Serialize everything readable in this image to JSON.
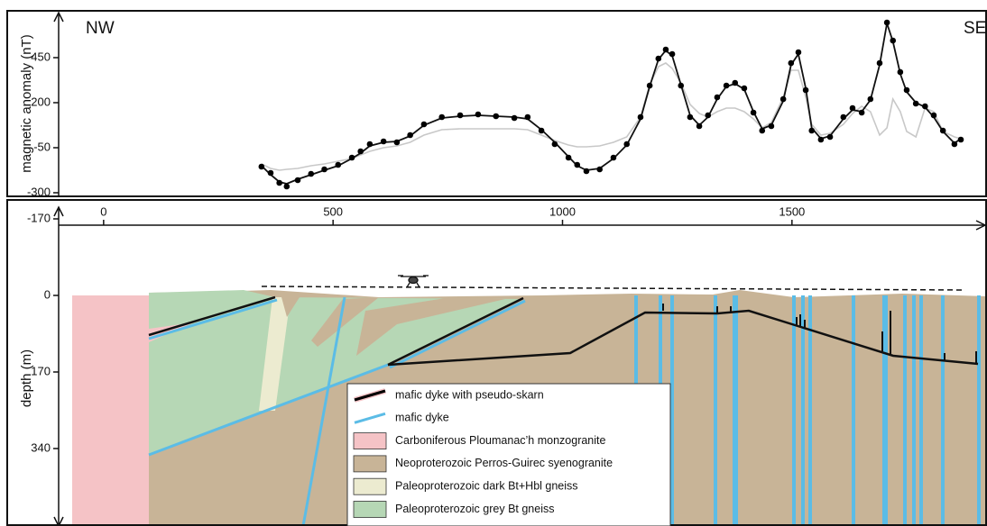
{
  "chart_data": [
    {
      "type": "line",
      "ylabel": "magnetic anomaly (nT)",
      "annotations": [
        "NW",
        "SE"
      ],
      "xlim": [
        -98,
        1925
      ],
      "ylim": [
        -320,
        700
      ],
      "yticks": [
        -300,
        -50,
        200,
        450
      ],
      "x": [
        344,
        364,
        383,
        399,
        423,
        452,
        481,
        511,
        541,
        560,
        580,
        610,
        639,
        668,
        698,
        737,
        777,
        816,
        855,
        895,
        924,
        954,
        983,
        1013,
        1032,
        1052,
        1081,
        1111,
        1140,
        1170,
        1190,
        1209,
        1225,
        1239,
        1258,
        1278,
        1298,
        1317,
        1337,
        1357,
        1376,
        1396,
        1416,
        1435,
        1455,
        1481,
        1498,
        1514,
        1530,
        1543,
        1563,
        1583,
        1612,
        1632,
        1652,
        1671,
        1691,
        1707,
        1720,
        1736,
        1750,
        1770,
        1790,
        1809,
        1829,
        1854,
        1868
      ],
      "series": [
        {
          "color": "#c8c8c8",
          "style": "line",
          "values": [
            -140,
            -165,
            -175,
            -170,
            -165,
            -150,
            -140,
            -125,
            -110,
            -90,
            -70,
            -50,
            -40,
            -20,
            20,
            50,
            55,
            55,
            55,
            55,
            50,
            20,
            -10,
            -35,
            -45,
            -45,
            -40,
            -20,
            10,
            120,
            300,
            400,
            420,
            390,
            310,
            190,
            140,
            120,
            150,
            170,
            170,
            150,
            110,
            60,
            90,
            230,
            380,
            380,
            230,
            80,
            20,
            30,
            80,
            140,
            180,
            150,
            20,
            60,
            220,
            150,
            40,
            10,
            170,
            150,
            40,
            10,
            0
          ]
        },
        {
          "color": "#111111",
          "style": "line",
          "values": [
            -150,
            -200,
            -240,
            -250,
            -225,
            -200,
            -175,
            -150,
            -110,
            -80,
            -40,
            -20,
            -15,
            15,
            75,
            115,
            125,
            130,
            125,
            120,
            110,
            50,
            -20,
            -100,
            -150,
            -175,
            -165,
            -110,
            -35,
            110,
            290,
            440,
            490,
            460,
            300,
            130,
            75,
            120,
            220,
            290,
            305,
            275,
            150,
            55,
            75,
            210,
            410,
            470,
            280,
            60,
            0,
            15,
            110,
            160,
            150,
            215,
            410,
            640,
            540,
            360,
            260,
            200,
            175,
            120,
            40,
            -25,
            0
          ]
        },
        {
          "color": "#000000",
          "style": "dots",
          "values": [
            -155,
            -190,
            -245,
            -265,
            -230,
            -195,
            -170,
            -145,
            -105,
            -70,
            -30,
            -15,
            -20,
            20,
            80,
            120,
            130,
            135,
            125,
            115,
            120,
            45,
            -30,
            -105,
            -145,
            -180,
            -170,
            -105,
            -30,
            120,
            295,
            445,
            495,
            470,
            295,
            120,
            70,
            130,
            230,
            295,
            310,
            280,
            145,
            45,
            70,
            220,
            420,
            480,
            270,
            45,
            -5,
            10,
            120,
            170,
            145,
            220,
            420,
            645,
            545,
            370,
            270,
            195,
            180,
            130,
            45,
            -30,
            -5
          ]
        }
      ]
    },
    {
      "type": "section",
      "ylabel": "depth (m)",
      "xlim": [
        -98,
        1925
      ],
      "ylim": [
        -212,
        512
      ],
      "y_inverted": true,
      "xticks": [
        0,
        500,
        1000,
        1500
      ],
      "yticks": [
        -170,
        0,
        170,
        340
      ],
      "legend": [
        {
          "label": "mafic dyke with pseudo-skarn",
          "color": "#000000",
          "mark": "line"
        },
        {
          "label": "mafic dyke",
          "color": "#5bbce6",
          "mark": "line"
        },
        {
          "label": "Carboniferous Ploumanac’h monzogranite",
          "color": "#f5c3c6",
          "mark": "box"
        },
        {
          "label": "Neoproterozoic Perros-Guirec syenogranite",
          "color": "#c8b497",
          "mark": "box"
        },
        {
          "label": "Paleoproterozoic dark Bt+Hbl gneiss",
          "color": "#ecebd0",
          "mark": "box"
        },
        {
          "label": "Paleoproterozoic grey Bt gneiss",
          "color": "#b6d7b5",
          "mark": "box"
        }
      ]
    }
  ]
}
